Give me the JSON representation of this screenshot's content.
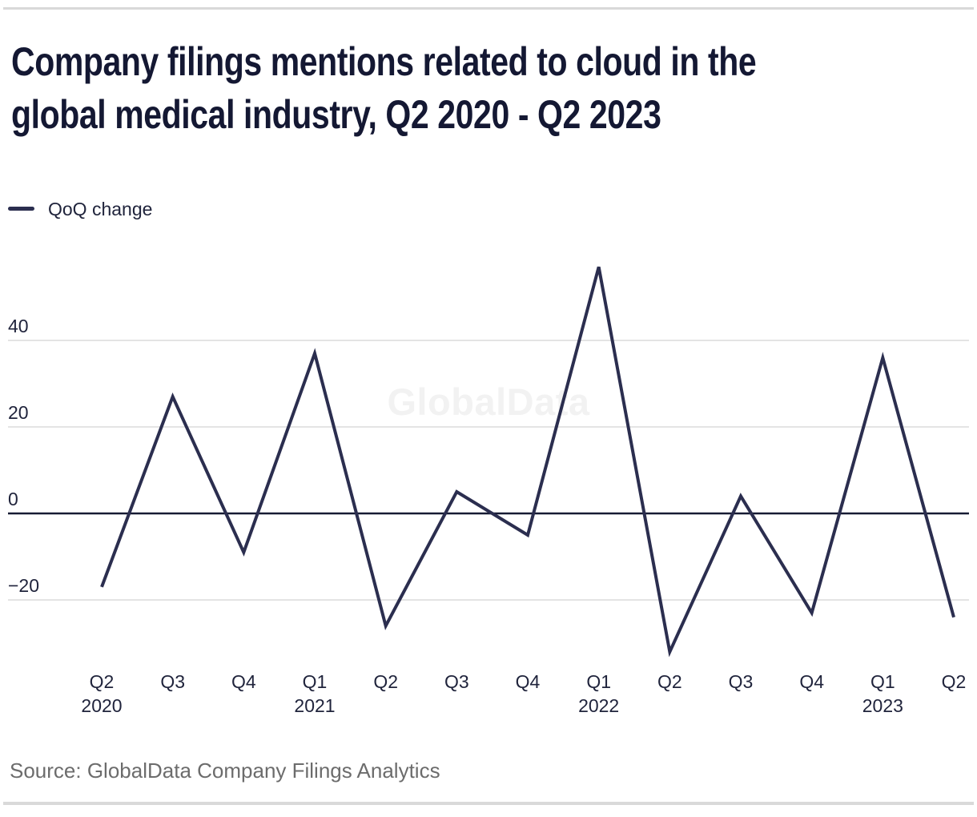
{
  "page": {
    "title_line1": "Company filings mentions related to cloud in the",
    "title_line2": "global medical industry, Q2 2020 - Q2 2023",
    "watermark": "GlobalData",
    "source": "Source: GlobalData Company Filings Analytics"
  },
  "legend": {
    "label": "QoQ change"
  },
  "chart_data": {
    "type": "line",
    "title": "Company filings mentions related to cloud in the global medical industry, Q2 2020 - Q2 2023",
    "xlabel": "",
    "ylabel": "",
    "legend_position": "top-left",
    "grid": "horizontal",
    "categories": [
      "Q2 2020",
      "Q3 2020",
      "Q4 2020",
      "Q1 2021",
      "Q2 2021",
      "Q3 2021",
      "Q4 2021",
      "Q1 2022",
      "Q2 2022",
      "Q3 2022",
      "Q4 2022",
      "Q1 2023",
      "Q2 2023"
    ],
    "x_labels": [
      {
        "q": "Q2",
        "year": "2020"
      },
      {
        "q": "Q3"
      },
      {
        "q": "Q4"
      },
      {
        "q": "Q1",
        "year": "2021"
      },
      {
        "q": "Q2"
      },
      {
        "q": "Q3"
      },
      {
        "q": "Q4"
      },
      {
        "q": "Q1",
        "year": "2022"
      },
      {
        "q": "Q2"
      },
      {
        "q": "Q3"
      },
      {
        "q": "Q4"
      },
      {
        "q": "Q1",
        "year": "2023"
      },
      {
        "q": "Q2"
      }
    ],
    "series": [
      {
        "name": "QoQ change",
        "values": [
          -17,
          27,
          -9,
          37,
          -26,
          5,
          -5,
          57,
          -32,
          4,
          -23,
          36,
          -24
        ]
      }
    ],
    "y_ticks": [
      {
        "value": 40,
        "label": "40"
      },
      {
        "value": 20,
        "label": "20"
      },
      {
        "value": 0,
        "label": "0"
      },
      {
        "value": -20,
        "label": "−20"
      }
    ],
    "ylim": [
      -40,
      62
    ],
    "line_color": "#2b2e4f",
    "zero_line_color": "#171b33",
    "grid_color": "#dcdcdc",
    "text_color": "#20243c"
  }
}
